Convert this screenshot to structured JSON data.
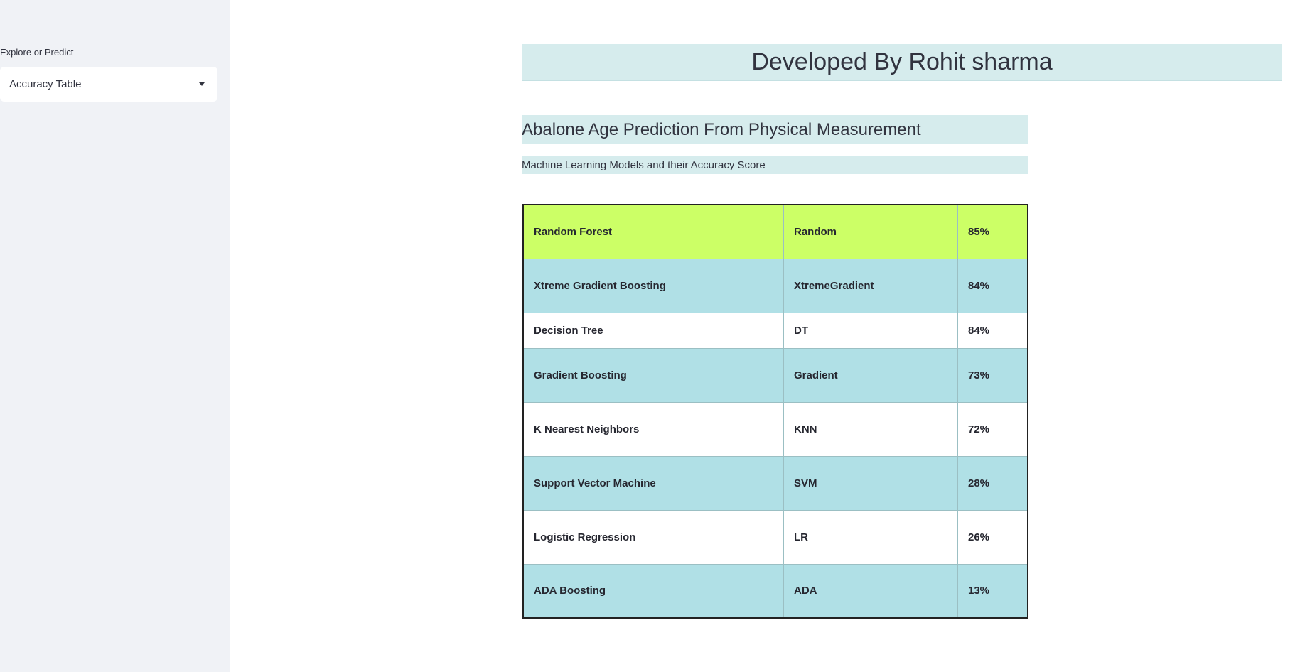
{
  "sidebar": {
    "select_label": "Explore or Predict",
    "select_value": "Accuracy Table",
    "bg_color": "#f0f2f6"
  },
  "header": {
    "developer": "Developed By Rohit sharma"
  },
  "main": {
    "title": "Abalone Age Prediction From Physical Measurement",
    "subtitle": "Machine Learning Models and their Accuracy Score"
  },
  "colors": {
    "banner_bg": "#d6eced",
    "top_row": "#ccff66",
    "teal_row": "#b0e0e6"
  },
  "table": {
    "rows": [
      {
        "model": "Random Forest",
        "short": "Random",
        "accuracy": "85%"
      },
      {
        "model": "Xtreme Gradient Boosting",
        "short": "XtremeGradient",
        "accuracy": "84%"
      },
      {
        "model": "Decision Tree",
        "short": "DT",
        "accuracy": "84%"
      },
      {
        "model": "Gradient Boosting",
        "short": "Gradient",
        "accuracy": "73%"
      },
      {
        "model": "K Nearest Neighbors",
        "short": "KNN",
        "accuracy": "72%"
      },
      {
        "model": "Support Vector Machine",
        "short": "SVM",
        "accuracy": "28%"
      },
      {
        "model": "Logistic Regression",
        "short": "LR",
        "accuracy": "26%"
      },
      {
        "model": "ADA Boosting",
        "short": "ADA",
        "accuracy": "13%"
      }
    ]
  }
}
